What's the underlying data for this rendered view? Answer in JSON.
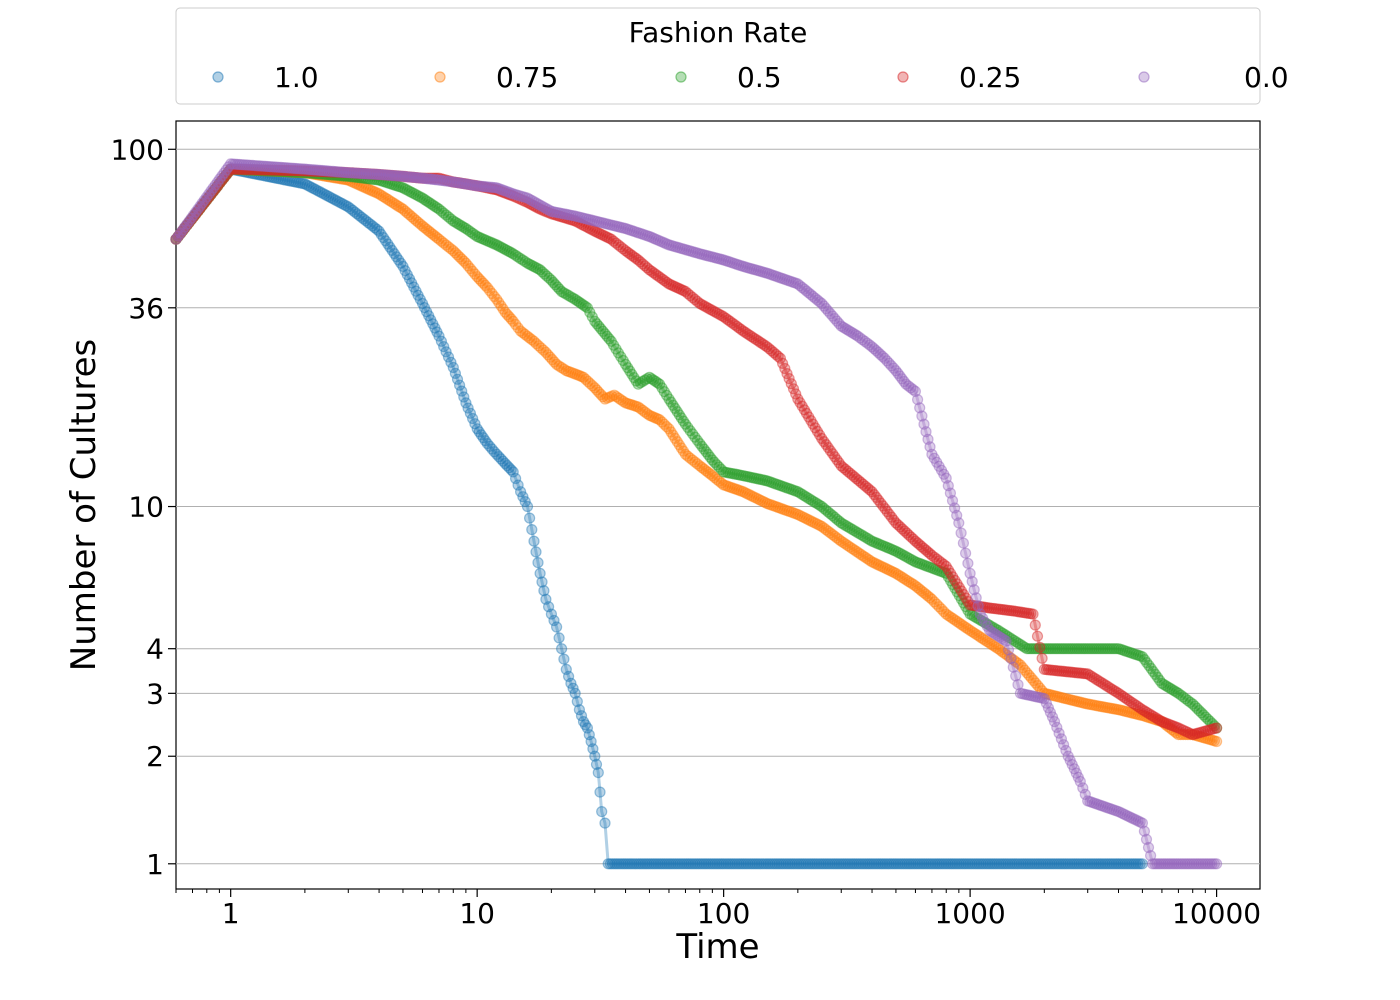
{
  "chart_data": {
    "type": "scatter",
    "xlabel": "Time",
    "ylabel": "Number of Cultures",
    "x_scale": "log",
    "y_scale": "log",
    "xlim": [
      0.6,
      15000
    ],
    "ylim": [
      0.85,
      120
    ],
    "xticks": [
      1,
      10,
      100,
      1000,
      10000
    ],
    "xtick_labels": [
      "1",
      "10",
      "100",
      "1000",
      "10000"
    ],
    "yticks": [
      1,
      2,
      3,
      4,
      10,
      36,
      100
    ],
    "ytick_labels": [
      "1",
      "2",
      "3",
      "4",
      "10",
      "36",
      "100"
    ],
    "grid": "horizontal",
    "legend": {
      "title": "Fashion Rate",
      "placement": "top",
      "entries": [
        "1.0",
        "0.75",
        "0.5",
        "0.25",
        "0.0"
      ]
    },
    "series": [
      {
        "name": "1.0",
        "color": "#1f77b4",
        "points": [
          [
            0.6,
            56
          ],
          [
            1,
            88
          ],
          [
            2,
            80
          ],
          [
            3,
            69
          ],
          [
            4,
            59
          ],
          [
            5,
            47
          ],
          [
            6,
            37
          ],
          [
            7,
            30
          ],
          [
            8,
            24.5
          ],
          [
            9,
            19.5
          ],
          [
            10,
            16.5
          ],
          [
            11,
            15
          ],
          [
            12,
            14
          ],
          [
            13,
            13.2
          ],
          [
            14,
            12.5
          ],
          [
            15,
            11
          ],
          [
            16,
            10
          ],
          [
            17,
            8
          ],
          [
            18,
            6.5
          ],
          [
            19,
            5.5
          ],
          [
            20,
            5
          ],
          [
            21,
            4.6
          ],
          [
            22,
            4
          ],
          [
            23,
            3.5
          ],
          [
            24,
            3.2
          ],
          [
            25,
            3
          ],
          [
            26,
            2.7
          ],
          [
            27,
            2.5
          ],
          [
            28,
            2.4
          ],
          [
            29,
            2.2
          ],
          [
            30,
            2
          ],
          [
            31,
            1.8
          ],
          [
            32,
            1.4
          ],
          [
            33,
            1.3
          ],
          [
            34,
            1
          ],
          [
            60,
            1
          ],
          [
            100,
            1
          ],
          [
            300,
            1
          ],
          [
            1000,
            1
          ],
          [
            3000,
            1
          ],
          [
            5000,
            1
          ]
        ]
      },
      {
        "name": "0.75",
        "color": "#ff7f0e",
        "points": [
          [
            0.6,
            56
          ],
          [
            1,
            88
          ],
          [
            2,
            86
          ],
          [
            3,
            82
          ],
          [
            4,
            75
          ],
          [
            5,
            68
          ],
          [
            6,
            61
          ],
          [
            7,
            56
          ],
          [
            8,
            52
          ],
          [
            9,
            48
          ],
          [
            10,
            44
          ],
          [
            11,
            41
          ],
          [
            12,
            38
          ],
          [
            13,
            35
          ],
          [
            14,
            33
          ],
          [
            15,
            31
          ],
          [
            17,
            29
          ],
          [
            19,
            27
          ],
          [
            21,
            25
          ],
          [
            23,
            24
          ],
          [
            25,
            23.5
          ],
          [
            27,
            23
          ],
          [
            30,
            21.5
          ],
          [
            33,
            20
          ],
          [
            36,
            20.5
          ],
          [
            40,
            19.5
          ],
          [
            45,
            19
          ],
          [
            50,
            18
          ],
          [
            55,
            17.5
          ],
          [
            60,
            16.5
          ],
          [
            70,
            14
          ],
          [
            80,
            13
          ],
          [
            90,
            12.2
          ],
          [
            100,
            11.5
          ],
          [
            120,
            11
          ],
          [
            150,
            10.2
          ],
          [
            200,
            9.5
          ],
          [
            250,
            8.8
          ],
          [
            300,
            8
          ],
          [
            400,
            7
          ],
          [
            500,
            6.5
          ],
          [
            600,
            6
          ],
          [
            700,
            5.5
          ],
          [
            800,
            5
          ],
          [
            1000,
            4.5
          ],
          [
            1300,
            4
          ],
          [
            1600,
            3.6
          ],
          [
            2000,
            3
          ],
          [
            3000,
            2.8
          ],
          [
            4000,
            2.7
          ],
          [
            5000,
            2.6
          ],
          [
            6000,
            2.5
          ],
          [
            7000,
            2.3
          ],
          [
            8000,
            2.3
          ],
          [
            10000,
            2.2
          ]
        ]
      },
      {
        "name": "0.5",
        "color": "#2ca02c",
        "points": [
          [
            0.6,
            56
          ],
          [
            1,
            88
          ],
          [
            2,
            86
          ],
          [
            3,
            84
          ],
          [
            4,
            82
          ],
          [
            5,
            78
          ],
          [
            6,
            73
          ],
          [
            7,
            68
          ],
          [
            8,
            63
          ],
          [
            9,
            60
          ],
          [
            10,
            57
          ],
          [
            12,
            54
          ],
          [
            14,
            51
          ],
          [
            16,
            48
          ],
          [
            18,
            46
          ],
          [
            20,
            43
          ],
          [
            22,
            40
          ],
          [
            25,
            38
          ],
          [
            28,
            36
          ],
          [
            30,
            33
          ],
          [
            35,
            29
          ],
          [
            40,
            25
          ],
          [
            45,
            22
          ],
          [
            50,
            23
          ],
          [
            55,
            22
          ],
          [
            60,
            20
          ],
          [
            70,
            17
          ],
          [
            80,
            15
          ],
          [
            90,
            13.5
          ],
          [
            100,
            12.5
          ],
          [
            120,
            12.2
          ],
          [
            150,
            11.8
          ],
          [
            200,
            11
          ],
          [
            250,
            10
          ],
          [
            300,
            9
          ],
          [
            400,
            8
          ],
          [
            500,
            7.5
          ],
          [
            600,
            7
          ],
          [
            800,
            6.5
          ],
          [
            1000,
            5
          ],
          [
            1300,
            4.5
          ],
          [
            1700,
            4
          ],
          [
            2000,
            4
          ],
          [
            3000,
            4
          ],
          [
            4000,
            4
          ],
          [
            5000,
            3.8
          ],
          [
            6000,
            3.2
          ],
          [
            7000,
            3
          ],
          [
            8000,
            2.8
          ],
          [
            10000,
            2.4
          ]
        ]
      },
      {
        "name": "0.25",
        "color": "#d62728",
        "points": [
          [
            0.6,
            56
          ],
          [
            1,
            88
          ],
          [
            2,
            87
          ],
          [
            3,
            86
          ],
          [
            4,
            85
          ],
          [
            5,
            84
          ],
          [
            6,
            83
          ],
          [
            7,
            83
          ],
          [
            8,
            81
          ],
          [
            9,
            80
          ],
          [
            10,
            79
          ],
          [
            12,
            77
          ],
          [
            14,
            74
          ],
          [
            16,
            71
          ],
          [
            18,
            68
          ],
          [
            20,
            66
          ],
          [
            25,
            63
          ],
          [
            30,
            59
          ],
          [
            35,
            56
          ],
          [
            40,
            52
          ],
          [
            45,
            49
          ],
          [
            50,
            46
          ],
          [
            60,
            42
          ],
          [
            70,
            40
          ],
          [
            80,
            37
          ],
          [
            100,
            34
          ],
          [
            120,
            31
          ],
          [
            150,
            28
          ],
          [
            170,
            26
          ],
          [
            200,
            20
          ],
          [
            250,
            15.5
          ],
          [
            300,
            13
          ],
          [
            400,
            11
          ],
          [
            500,
            9
          ],
          [
            600,
            8
          ],
          [
            700,
            7.3
          ],
          [
            800,
            6.8
          ],
          [
            1000,
            5.3
          ],
          [
            1200,
            5.2
          ],
          [
            1500,
            5.1
          ],
          [
            1800,
            5
          ],
          [
            2000,
            3.5
          ],
          [
            3000,
            3.4
          ],
          [
            4000,
            3
          ],
          [
            5000,
            2.7
          ],
          [
            6000,
            2.5
          ],
          [
            7000,
            2.4
          ],
          [
            8000,
            2.3
          ],
          [
            10000,
            2.4
          ]
        ]
      },
      {
        "name": "0.0",
        "color": "#9467bd",
        "points": [
          [
            0.6,
            56
          ],
          [
            1,
            91
          ],
          [
            2,
            88
          ],
          [
            3,
            86
          ],
          [
            4,
            85
          ],
          [
            5,
            84
          ],
          [
            6,
            83
          ],
          [
            7,
            82
          ],
          [
            8,
            81
          ],
          [
            10,
            79
          ],
          [
            12,
            78
          ],
          [
            14,
            75
          ],
          [
            16,
            73
          ],
          [
            20,
            67
          ],
          [
            25,
            65
          ],
          [
            30,
            63
          ],
          [
            40,
            60
          ],
          [
            50,
            57
          ],
          [
            60,
            54
          ],
          [
            80,
            51
          ],
          [
            100,
            49
          ],
          [
            120,
            47
          ],
          [
            150,
            45
          ],
          [
            200,
            42
          ],
          [
            250,
            37
          ],
          [
            300,
            32
          ],
          [
            350,
            30
          ],
          [
            400,
            28
          ],
          [
            450,
            26
          ],
          [
            500,
            24
          ],
          [
            550,
            22
          ],
          [
            600,
            21
          ],
          [
            650,
            17
          ],
          [
            700,
            14
          ],
          [
            800,
            12
          ],
          [
            900,
            9
          ],
          [
            1000,
            6.5
          ],
          [
            1100,
            5
          ],
          [
            1200,
            4.5
          ],
          [
            1400,
            4.2
          ],
          [
            1600,
            3
          ],
          [
            2000,
            2.9
          ],
          [
            2200,
            2.5
          ],
          [
            2500,
            2
          ],
          [
            2800,
            1.7
          ],
          [
            3000,
            1.5
          ],
          [
            4000,
            1.4
          ],
          [
            5000,
            1.3
          ],
          [
            5500,
            1
          ],
          [
            7000,
            1
          ],
          [
            10000,
            1
          ]
        ]
      }
    ]
  }
}
